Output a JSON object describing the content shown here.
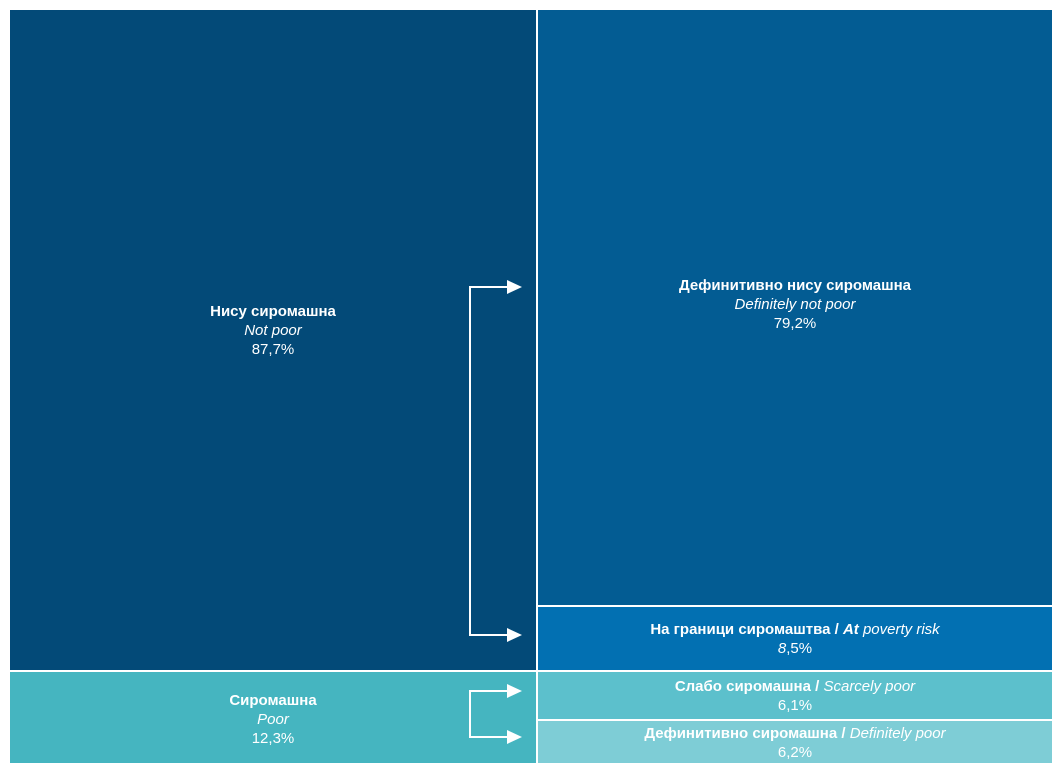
{
  "nodes": [
    {
      "sr": "Нису сиромашна",
      "en": "Not poor",
      "value": "87,7%"
    },
    {
      "sr": "Сиромашна",
      "en": "Poor",
      "value": "12,3%"
    },
    {
      "sr": "Дефинитивно нису сиромашна",
      "en": "Definitely not poor",
      "value": "79,2%"
    },
    {
      "sr": "На граници сиромаштва /",
      "en_bold": "At",
      "en": "poverty risk",
      "value_italic": "8",
      "value": ",5%"
    },
    {
      "sr": "Слабо сиромашна /",
      "en": "Scarcely poor",
      "value": "6,1%"
    },
    {
      "sr": "Дефинитивно сиромашна /",
      "en": "Definitely poor",
      "value": "6,2%"
    }
  ]
}
